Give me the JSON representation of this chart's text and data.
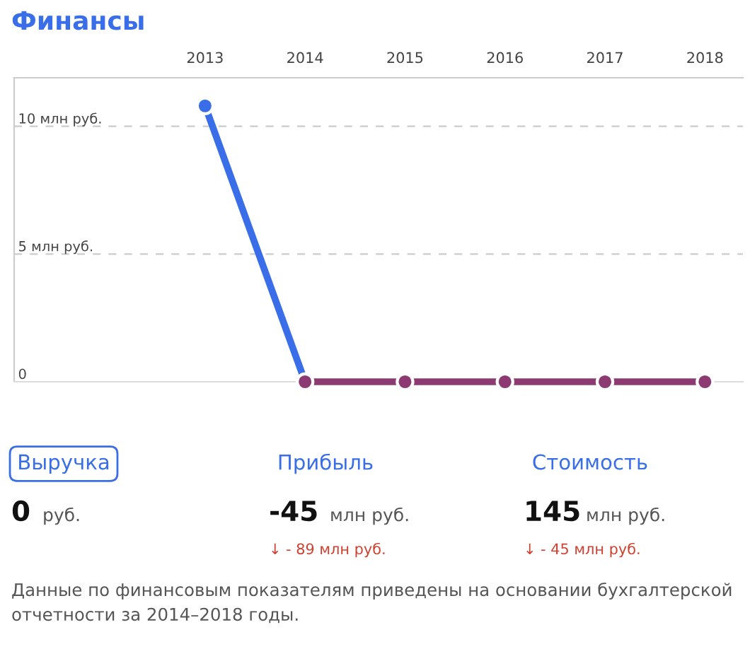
{
  "chart_data": [
    {
      "type": "line",
      "title": "Финансы",
      "categories": [
        "2013",
        "2014",
        "2015",
        "2016",
        "2017",
        "2018"
      ],
      "series": [
        {
          "color": "#3a6ee8",
          "values": [
            10.8,
            0,
            null,
            null,
            null,
            null
          ]
        },
        {
          "color": "#8e3a72",
          "values": [
            null,
            0,
            0,
            0,
            0,
            0
          ]
        }
      ],
      "ylim": [
        0,
        11.9
      ],
      "yticks": [
        0,
        {
          "value": 5,
          "label": "5 млн руб."
        },
        {
          "value": 10,
          "label": "10 млн руб."
        }
      ],
      "grid": "y",
      "marker": "circle",
      "line_style": "solid"
    },
    {
      "type": "other",
      "annotations": [
        "Выручка",
        "0",
        "руб.",
        "Прибыль",
        "-45",
        "млн руб.",
        "↓ - 89 млн руб.",
        "Стоимость",
        "145",
        "млн руб.",
        "↓ - 45 млн руб.",
        "Данные по финансовым показателям приведены на основании бухгалтерской отчетности за 2014–2018 годы."
      ]
    }
  ]
}
